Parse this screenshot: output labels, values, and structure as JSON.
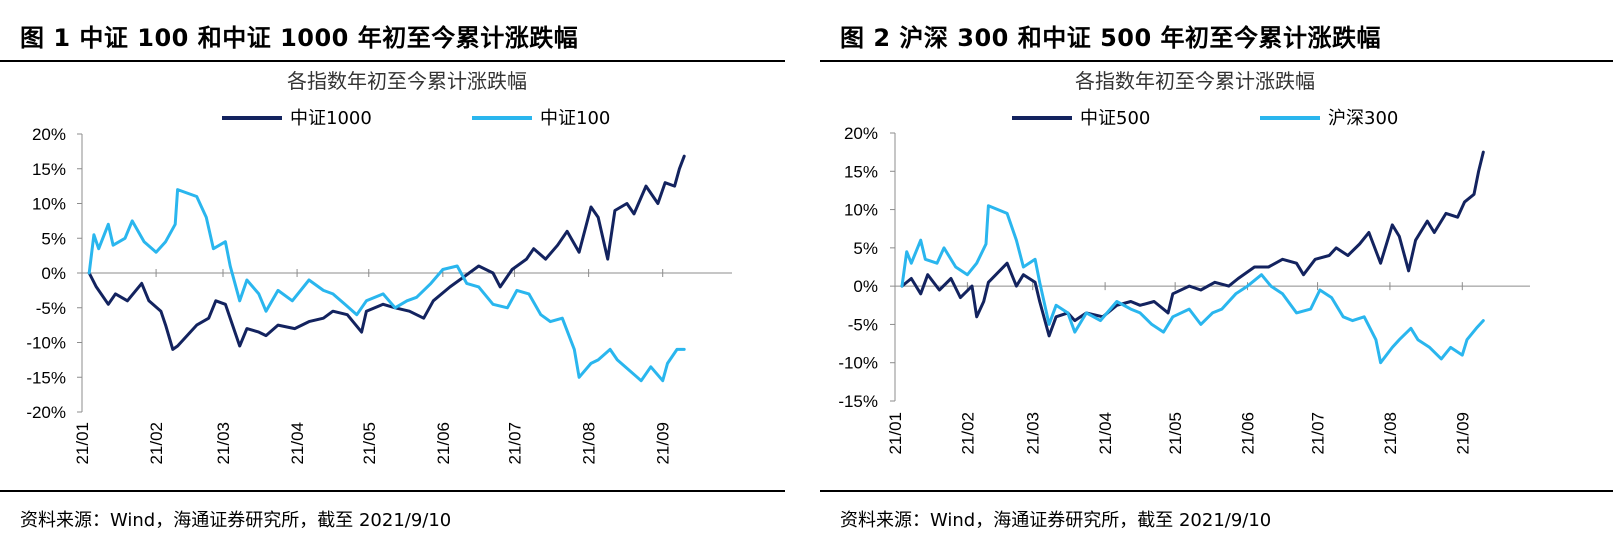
{
  "left": {
    "figure_title": "图 1  中证 100 和中证 1000 年初至今累计涨跌幅",
    "source": "资料来源：Wind，海通证券研究所，截至 2021/9/10"
  },
  "right": {
    "figure_title": "图 2  沪深 300 和中证 500 年初至今累计涨跌幅",
    "source": "资料来源：Wind，海通证券研究所，截至 2021/9/10"
  },
  "colors": {
    "dark_navy": "#13235f",
    "light_blue": "#2ab6ee"
  },
  "chart_data": [
    {
      "type": "line",
      "title": "各指数年初至今累计涨跌幅",
      "x_axis_labels": [
        "21/01",
        "21/02",
        "21/03",
        "21/04",
        "21/05",
        "21/06",
        "21/07",
        "21/08",
        "21/09"
      ],
      "y_ticks": [
        "20%",
        "15%",
        "10%",
        "5%",
        "0%",
        "-5%",
        "-10%",
        "-15%",
        "-20%"
      ],
      "ylim": [
        -20,
        20
      ],
      "legend_position": "top",
      "series": [
        {
          "name": "中证1000",
          "color": "dark_navy",
          "values": [
            [
              "2021-01-04",
              0
            ],
            [
              "2021-01-07",
              -2
            ],
            [
              "2021-01-12",
              -4.5
            ],
            [
              "2021-01-15",
              -3
            ],
            [
              "2021-01-20",
              -4
            ],
            [
              "2021-01-26",
              -1.5
            ],
            [
              "2021-01-29",
              -4
            ],
            [
              "2021-02-03",
              -5.5
            ],
            [
              "2021-02-05",
              -7.5
            ],
            [
              "2021-02-08",
              -11
            ],
            [
              "2021-02-10",
              -10.5
            ],
            [
              "2021-02-18",
              -7.5
            ],
            [
              "2021-02-23",
              -6.5
            ],
            [
              "2021-02-26",
              -4
            ],
            [
              "2021-03-02",
              -4.5
            ],
            [
              "2021-03-04",
              -6.5
            ],
            [
              "2021-03-08",
              -10.5
            ],
            [
              "2021-03-11",
              -8
            ],
            [
              "2021-03-16",
              -8.5
            ],
            [
              "2021-03-19",
              -9
            ],
            [
              "2021-03-24",
              -7.5
            ],
            [
              "2021-03-31",
              -8
            ],
            [
              "2021-04-06",
              -7
            ],
            [
              "2021-04-12",
              -6.5
            ],
            [
              "2021-04-16",
              -5.5
            ],
            [
              "2021-04-22",
              -6
            ],
            [
              "2021-04-28",
              -8.5
            ],
            [
              "2021-04-30",
              -5.5
            ],
            [
              "2021-05-07",
              -4.5
            ],
            [
              "2021-05-12",
              -5
            ],
            [
              "2021-05-18",
              -5.5
            ],
            [
              "2021-05-24",
              -6.5
            ],
            [
              "2021-05-28",
              -4
            ],
            [
              "2021-06-04",
              -2
            ],
            [
              "2021-06-10",
              -0.5
            ],
            [
              "2021-06-16",
              1
            ],
            [
              "2021-06-22",
              0
            ],
            [
              "2021-06-25",
              -2
            ],
            [
              "2021-06-30",
              0.5
            ],
            [
              "2021-07-06",
              2
            ],
            [
              "2021-07-09",
              3.5
            ],
            [
              "2021-07-14",
              2
            ],
            [
              "2021-07-19",
              4
            ],
            [
              "2021-07-23",
              6
            ],
            [
              "2021-07-28",
              3
            ],
            [
              "2021-08-02",
              9.5
            ],
            [
              "2021-08-05",
              8
            ],
            [
              "2021-08-09",
              2
            ],
            [
              "2021-08-12",
              9
            ],
            [
              "2021-08-17",
              10
            ],
            [
              "2021-08-20",
              8.5
            ],
            [
              "2021-08-25",
              12.5
            ],
            [
              "2021-08-30",
              10
            ],
            [
              "2021-09-02",
              13
            ],
            [
              "2021-09-06",
              12.5
            ],
            [
              "2021-09-08",
              15
            ],
            [
              "2021-09-10",
              16.8
            ]
          ]
        },
        {
          "name": "中证100",
          "color": "light_blue",
          "values": [
            [
              "2021-01-04",
              0
            ],
            [
              "2021-01-06",
              5.5
            ],
            [
              "2021-01-08",
              3.5
            ],
            [
              "2021-01-12",
              7
            ],
            [
              "2021-01-14",
              4
            ],
            [
              "2021-01-19",
              5
            ],
            [
              "2021-01-22",
              7.5
            ],
            [
              "2021-01-27",
              4.5
            ],
            [
              "2021-02-01",
              3
            ],
            [
              "2021-02-05",
              4.5
            ],
            [
              "2021-02-09",
              7
            ],
            [
              "2021-02-10",
              12
            ],
            [
              "2021-02-18",
              11
            ],
            [
              "2021-02-22",
              8
            ],
            [
              "2021-02-25",
              3.5
            ],
            [
              "2021-03-02",
              4.5
            ],
            [
              "2021-03-04",
              1
            ],
            [
              "2021-03-08",
              -4
            ],
            [
              "2021-03-11",
              -1
            ],
            [
              "2021-03-16",
              -3
            ],
            [
              "2021-03-19",
              -5.5
            ],
            [
              "2021-03-24",
              -2.5
            ],
            [
              "2021-03-30",
              -4
            ],
            [
              "2021-04-06",
              -1
            ],
            [
              "2021-04-12",
              -2.5
            ],
            [
              "2021-04-16",
              -3
            ],
            [
              "2021-04-21",
              -4.5
            ],
            [
              "2021-04-26",
              -6
            ],
            [
              "2021-04-30",
              -4
            ],
            [
              "2021-05-07",
              -3
            ],
            [
              "2021-05-12",
              -5
            ],
            [
              "2021-05-17",
              -4
            ],
            [
              "2021-05-21",
              -3.5
            ],
            [
              "2021-05-27",
              -1.5
            ],
            [
              "2021-06-01",
              0.5
            ],
            [
              "2021-06-07",
              1
            ],
            [
              "2021-06-11",
              -1.5
            ],
            [
              "2021-06-16",
              -2
            ],
            [
              "2021-06-22",
              -4.5
            ],
            [
              "2021-06-28",
              -5
            ],
            [
              "2021-07-02",
              -2.5
            ],
            [
              "2021-07-07",
              -3
            ],
            [
              "2021-07-12",
              -6
            ],
            [
              "2021-07-16",
              -7
            ],
            [
              "2021-07-21",
              -6.5
            ],
            [
              "2021-07-26",
              -11
            ],
            [
              "2021-07-28",
              -15
            ],
            [
              "2021-08-02",
              -13
            ],
            [
              "2021-08-05",
              -12.5
            ],
            [
              "2021-08-10",
              -11
            ],
            [
              "2021-08-13",
              -12.5
            ],
            [
              "2021-08-18",
              -14
            ],
            [
              "2021-08-23",
              -15.5
            ],
            [
              "2021-08-27",
              -13.5
            ],
            [
              "2021-09-01",
              -15.5
            ],
            [
              "2021-09-03",
              -13
            ],
            [
              "2021-09-07",
              -11
            ],
            [
              "2021-09-10",
              -11
            ]
          ]
        }
      ]
    },
    {
      "type": "line",
      "title": "各指数年初至今累计涨跌幅",
      "x_axis_labels": [
        "21/01",
        "21/02",
        "21/03",
        "21/04",
        "21/05",
        "21/06",
        "21/07",
        "21/08",
        "21/09"
      ],
      "y_ticks": [
        "20%",
        "15%",
        "10%",
        "5%",
        "0%",
        "-5%",
        "-10%",
        "-15%"
      ],
      "ylim": [
        -15,
        20
      ],
      "legend_position": "top",
      "series": [
        {
          "name": "中证500",
          "color": "dark_navy",
          "values": [
            [
              "2021-01-04",
              0
            ],
            [
              "2021-01-08",
              1
            ],
            [
              "2021-01-12",
              -1
            ],
            [
              "2021-01-15",
              1.5
            ],
            [
              "2021-01-20",
              -0.5
            ],
            [
              "2021-01-25",
              1
            ],
            [
              "2021-01-29",
              -1.5
            ],
            [
              "2021-02-03",
              0
            ],
            [
              "2021-02-05",
              -4
            ],
            [
              "2021-02-08",
              -2
            ],
            [
              "2021-02-10",
              0.5
            ],
            [
              "2021-02-18",
              3
            ],
            [
              "2021-02-22",
              0
            ],
            [
              "2021-02-25",
              1.5
            ],
            [
              "2021-03-02",
              0.5
            ],
            [
              "2021-03-04",
              -2
            ],
            [
              "2021-03-08",
              -6.5
            ],
            [
              "2021-03-11",
              -4
            ],
            [
              "2021-03-16",
              -3.5
            ],
            [
              "2021-03-19",
              -4.5
            ],
            [
              "2021-03-24",
              -3.5
            ],
            [
              "2021-03-31",
              -4
            ],
            [
              "2021-04-06",
              -2.5
            ],
            [
              "2021-04-12",
              -2
            ],
            [
              "2021-04-16",
              -2.5
            ],
            [
              "2021-04-22",
              -2
            ],
            [
              "2021-04-28",
              -3.5
            ],
            [
              "2021-04-30",
              -1
            ],
            [
              "2021-05-07",
              0
            ],
            [
              "2021-05-12",
              -0.5
            ],
            [
              "2021-05-18",
              0.5
            ],
            [
              "2021-05-24",
              0
            ],
            [
              "2021-05-28",
              1
            ],
            [
              "2021-06-04",
              2.5
            ],
            [
              "2021-06-10",
              2.5
            ],
            [
              "2021-06-16",
              3.5
            ],
            [
              "2021-06-22",
              3
            ],
            [
              "2021-06-25",
              1.5
            ],
            [
              "2021-06-30",
              3.5
            ],
            [
              "2021-07-06",
              4
            ],
            [
              "2021-07-09",
              5
            ],
            [
              "2021-07-14",
              4
            ],
            [
              "2021-07-19",
              5.5
            ],
            [
              "2021-07-23",
              7
            ],
            [
              "2021-07-28",
              3
            ],
            [
              "2021-08-02",
              8
            ],
            [
              "2021-08-05",
              6.5
            ],
            [
              "2021-08-09",
              2
            ],
            [
              "2021-08-12",
              6
            ],
            [
              "2021-08-17",
              8.5
            ],
            [
              "2021-08-20",
              7
            ],
            [
              "2021-08-25",
              9.5
            ],
            [
              "2021-08-30",
              9
            ],
            [
              "2021-09-02",
              11
            ],
            [
              "2021-09-06",
              12
            ],
            [
              "2021-09-08",
              15
            ],
            [
              "2021-09-10",
              17.5
            ]
          ]
        },
        {
          "name": "沪深300",
          "color": "light_blue",
          "values": [
            [
              "2021-01-04",
              0
            ],
            [
              "2021-01-06",
              4.5
            ],
            [
              "2021-01-08",
              3
            ],
            [
              "2021-01-12",
              6
            ],
            [
              "2021-01-14",
              3.5
            ],
            [
              "2021-01-19",
              3
            ],
            [
              "2021-01-22",
              5
            ],
            [
              "2021-01-27",
              2.5
            ],
            [
              "2021-02-01",
              1.5
            ],
            [
              "2021-02-05",
              3
            ],
            [
              "2021-02-09",
              5.5
            ],
            [
              "2021-02-10",
              10.5
            ],
            [
              "2021-02-18",
              9.5
            ],
            [
              "2021-02-22",
              6
            ],
            [
              "2021-02-25",
              2.5
            ],
            [
              "2021-03-02",
              3.5
            ],
            [
              "2021-03-04",
              0.5
            ],
            [
              "2021-03-08",
              -5
            ],
            [
              "2021-03-11",
              -2.5
            ],
            [
              "2021-03-16",
              -3.5
            ],
            [
              "2021-03-19",
              -6
            ],
            [
              "2021-03-24",
              -3.5
            ],
            [
              "2021-03-30",
              -4.5
            ],
            [
              "2021-04-06",
              -2
            ],
            [
              "2021-04-12",
              -3
            ],
            [
              "2021-04-16",
              -3.5
            ],
            [
              "2021-04-21",
              -5
            ],
            [
              "2021-04-26",
              -6
            ],
            [
              "2021-04-30",
              -4
            ],
            [
              "2021-05-07",
              -3
            ],
            [
              "2021-05-12",
              -5
            ],
            [
              "2021-05-17",
              -3.5
            ],
            [
              "2021-05-21",
              -3
            ],
            [
              "2021-05-27",
              -1
            ],
            [
              "2021-06-01",
              0
            ],
            [
              "2021-06-07",
              1.5
            ],
            [
              "2021-06-11",
              0
            ],
            [
              "2021-06-16",
              -1
            ],
            [
              "2021-06-22",
              -3.5
            ],
            [
              "2021-06-28",
              -3
            ],
            [
              "2021-07-02",
              -0.5
            ],
            [
              "2021-07-07",
              -1.5
            ],
            [
              "2021-07-12",
              -4
            ],
            [
              "2021-07-16",
              -4.5
            ],
            [
              "2021-07-21",
              -4
            ],
            [
              "2021-07-26",
              -7
            ],
            [
              "2021-07-28",
              -10
            ],
            [
              "2021-08-02",
              -8
            ],
            [
              "2021-08-05",
              -7
            ],
            [
              "2021-08-10",
              -5.5
            ],
            [
              "2021-08-13",
              -7
            ],
            [
              "2021-08-18",
              -8
            ],
            [
              "2021-08-23",
              -9.5
            ],
            [
              "2021-08-27",
              -8
            ],
            [
              "2021-09-01",
              -9
            ],
            [
              "2021-09-03",
              -7
            ],
            [
              "2021-09-07",
              -5.5
            ],
            [
              "2021-09-10",
              -4.5
            ]
          ]
        }
      ]
    }
  ]
}
